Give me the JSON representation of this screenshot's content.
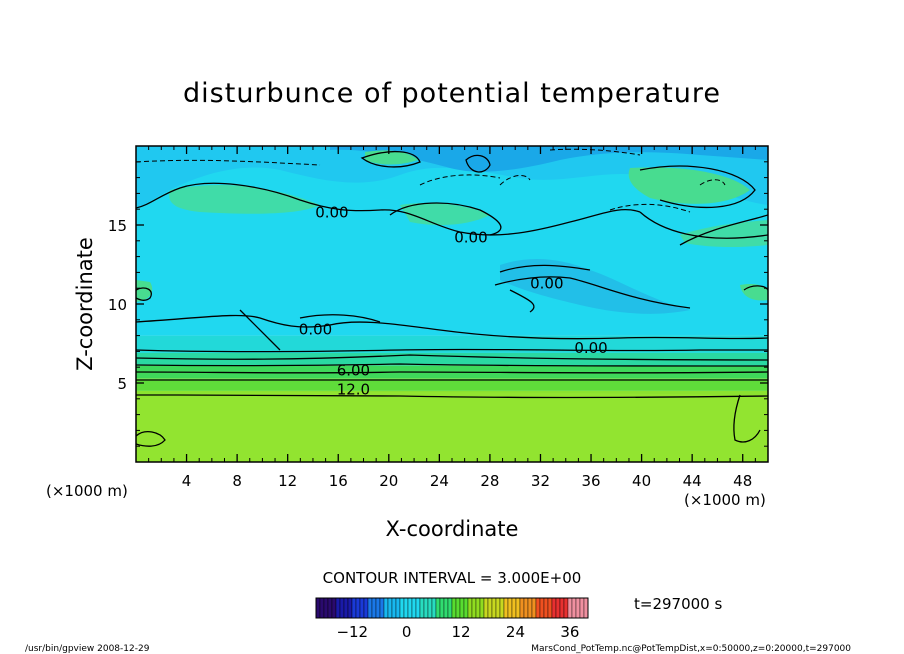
{
  "chart_data": {
    "type": "heatmap",
    "title": "disturbunce of potential temperature",
    "xlabel": "X-coordinate",
    "ylabel": "Z-coordinate",
    "x_unit_left": "(×1000 m)",
    "x_unit_right": "(×1000 m)",
    "xlim": [
      0,
      50
    ],
    "ylim": [
      0,
      20
    ],
    "xticks": [
      4,
      8,
      12,
      16,
      20,
      24,
      28,
      32,
      36,
      40,
      44,
      48
    ],
    "yticks": [
      5,
      10,
      15
    ],
    "contour_labels": [
      {
        "text": "0.00",
        "x": 15.5,
        "z": 15.8
      },
      {
        "text": "0.00",
        "x": 26.5,
        "z": 14.2
      },
      {
        "text": "0.00",
        "x": 32.5,
        "z": 11.3
      },
      {
        "text": "0.00",
        "x": 14.2,
        "z": 8.4
      },
      {
        "text": "0.00",
        "x": 36.0,
        "z": 7.2
      },
      {
        "text": "6.00",
        "x": 17.2,
        "z": 5.8
      },
      {
        "text": "12.0",
        "x": 17.2,
        "z": 4.6
      }
    ],
    "field_levels": [
      {
        "z_from": 0,
        "z_to": 4.5,
        "value": 15,
        "color": "#8be22f"
      },
      {
        "z_from": 4.5,
        "z_to": 5.3,
        "value": 12,
        "color": "#5fdc3a"
      },
      {
        "z_from": 5.3,
        "z_to": 6.1,
        "value": 9,
        "color": "#3fd85a"
      },
      {
        "z_from": 6.1,
        "z_to": 6.9,
        "value": 6,
        "color": "#2ad8a2"
      },
      {
        "z_from": 6.9,
        "z_to": 8.0,
        "value": 3,
        "color": "#22d9d9"
      },
      {
        "z_from": 8.0,
        "z_to": 20,
        "value": 0,
        "color": "#20d8f0"
      }
    ],
    "colorbar": {
      "ticks": [
        -12,
        0,
        12,
        24,
        36
      ],
      "range": [
        -20,
        40
      ],
      "colors": [
        "#2a0a6e",
        "#1a1aa8",
        "#1a3ad8",
        "#1a78e8",
        "#18b8f0",
        "#20d8f0",
        "#28dcc0",
        "#30dc70",
        "#58dc30",
        "#90dc20",
        "#c8d820",
        "#f0c020",
        "#f09020",
        "#f05020",
        "#e83030",
        "#f090a0"
      ]
    },
    "contour_interval_text": "CONTOUR INTERVAL = 3.000E+00",
    "time_text": "t=297000 s"
  },
  "footer": {
    "left": "/usr/bin/gpview  2008-12-29",
    "right": "MarsCond_PotTemp.nc@PotTempDist,x=0:50000,z=0:20000,t=297000"
  }
}
